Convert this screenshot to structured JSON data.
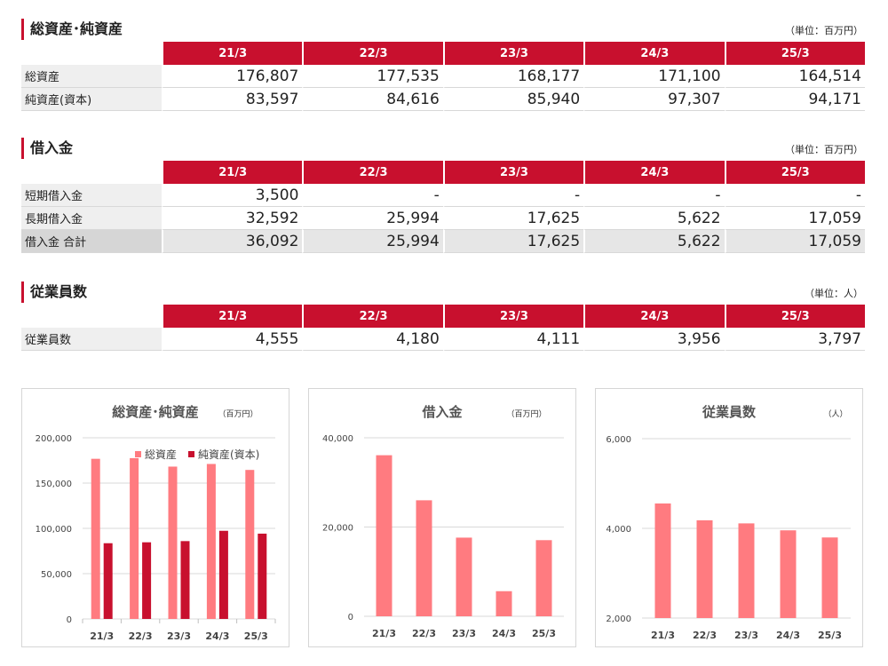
{
  "sections": {
    "assets": {
      "title": "総資産･純資産",
      "unit": "（単位：百万円）",
      "headers": [
        "21/3",
        "22/3",
        "23/3",
        "24/3",
        "25/3"
      ],
      "rows": [
        {
          "label": "総資産",
          "values": [
            "176,807",
            "177,535",
            "168,177",
            "171,100",
            "164,514"
          ]
        },
        {
          "label": "純資産(資本)",
          "values": [
            "83,597",
            "84,616",
            "85,940",
            "97,307",
            "94,171"
          ]
        }
      ]
    },
    "borrowings": {
      "title": "借入金",
      "unit": "（単位：百万円）",
      "headers": [
        "21/3",
        "22/3",
        "23/3",
        "24/3",
        "25/3"
      ],
      "rows": [
        {
          "label": "短期借入金",
          "values": [
            "3,500",
            "-",
            "-",
            "-",
            "-"
          ]
        },
        {
          "label": "長期借入金",
          "values": [
            "32,592",
            "25,994",
            "17,625",
            "5,622",
            "17,059"
          ]
        },
        {
          "label": "借入金 合計",
          "values": [
            "36,092",
            "25,994",
            "17,625",
            "5,622",
            "17,059"
          ]
        }
      ]
    },
    "employees": {
      "title": "従業員数",
      "unit": "（単位：人）",
      "headers": [
        "21/3",
        "22/3",
        "23/3",
        "24/3",
        "25/3"
      ],
      "rows": [
        {
          "label": "従業員数",
          "values": [
            "4,555",
            "4,180",
            "4,111",
            "3,956",
            "3,797"
          ]
        }
      ]
    }
  },
  "colors": {
    "accent": "#c8102e",
    "light_bar": "#ff7b80",
    "dark_bar": "#c8102e"
  },
  "chart_data": [
    {
      "type": "bar",
      "title": "総資産･純資産",
      "unit": "（百万円）",
      "categories": [
        "21/3",
        "22/3",
        "23/3",
        "24/3",
        "25/3"
      ],
      "series": [
        {
          "name": "総資産",
          "values": [
            176807,
            177535,
            168177,
            171100,
            164514
          ],
          "color": "#ff7b80"
        },
        {
          "name": "純資産(資本)",
          "values": [
            83597,
            84616,
            85940,
            97307,
            94171
          ],
          "color": "#c8102e"
        }
      ],
      "ylim": [
        0,
        200000
      ],
      "yticks": [
        0,
        50000,
        100000,
        150000,
        200000
      ],
      "ytick_labels": [
        "0",
        "50,000",
        "100,000",
        "150,000",
        "200,000"
      ],
      "legend": "top-right",
      "grid": true
    },
    {
      "type": "bar",
      "title": "借入金",
      "unit": "（百万円）",
      "categories": [
        "21/3",
        "22/3",
        "23/3",
        "24/3",
        "25/3"
      ],
      "series": [
        {
          "name": "借入金 合計",
          "values": [
            36092,
            25994,
            17625,
            5622,
            17059
          ],
          "color": "#ff7b80"
        }
      ],
      "ylim": [
        0,
        40000
      ],
      "yticks": [
        0,
        20000,
        40000
      ],
      "ytick_labels": [
        "0",
        "20,000",
        "40,000"
      ],
      "grid": true
    },
    {
      "type": "bar",
      "title": "従業員数",
      "unit": "（人）",
      "categories": [
        "21/3",
        "22/3",
        "23/3",
        "24/3",
        "25/3"
      ],
      "series": [
        {
          "name": "従業員数",
          "values": [
            4555,
            4180,
            4111,
            3956,
            3797
          ],
          "color": "#ff7b80"
        }
      ],
      "ylim": [
        2000,
        6000
      ],
      "yticks": [
        2000,
        4000,
        6000
      ],
      "ytick_labels": [
        "2,000",
        "4,000",
        "6,000"
      ],
      "grid": true
    }
  ]
}
